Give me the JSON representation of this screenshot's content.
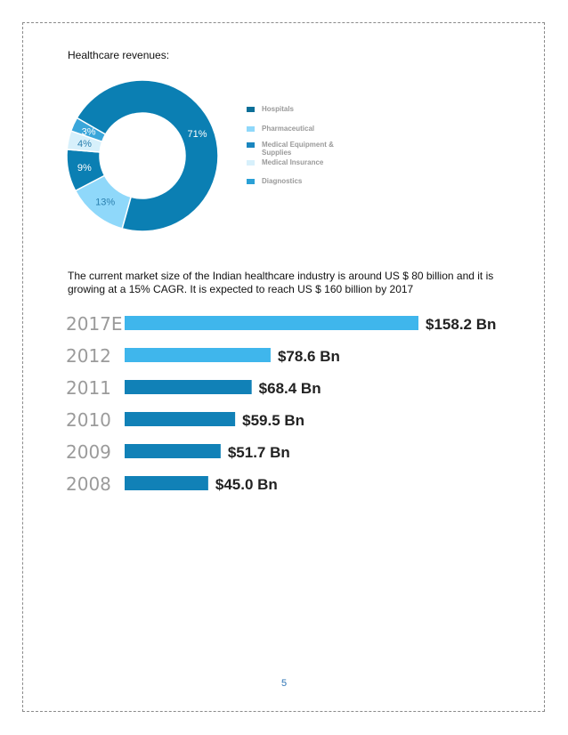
{
  "document": {
    "heading": "Healthcare revenues:",
    "paragraph": "The current market size of the Indian healthcare industry is around US $ 80 billion and it is growing at a 15% CAGR. It is expected to reach US $ 160 billion by 2017",
    "page_number": "5"
  },
  "chart_data": [
    {
      "type": "pie",
      "style": "donut",
      "legend_position": "right",
      "slices": [
        {
          "name": "Hospitals",
          "value": 71,
          "label": "71%",
          "color": "#0b7fb3"
        },
        {
          "name": "Pharmaceutical",
          "value": 13,
          "label": "13%",
          "color": "#8fd8fa"
        },
        {
          "name": "Medical Equipment & Supplies",
          "value": 9,
          "label": "9%",
          "color": "#0b7fb3"
        },
        {
          "name": "Medical Insurance",
          "value": 4,
          "label": "4%",
          "color": "#d7f0fb"
        },
        {
          "name": "Diagnostics",
          "value": 3,
          "label": "3%",
          "color": "#3aa6da"
        }
      ],
      "legend": [
        {
          "label": "Hospitals",
          "color": "#0b6f98"
        },
        {
          "label": "Pharmaceutical",
          "color": "#8fd8fa"
        },
        {
          "label": "Medical Equipment & Supplies",
          "color": "#1a86bf"
        },
        {
          "label": "Medical Insurance",
          "color": "#d7f0fb"
        },
        {
          "label": "Diagnostics",
          "color": "#2aa0d6"
        }
      ]
    },
    {
      "type": "bar",
      "orientation": "horizontal",
      "categories": [
        "2017E",
        "2012",
        "2011",
        "2010",
        "2009",
        "2008"
      ],
      "values": [
        158.2,
        78.6,
        68.4,
        59.5,
        51.7,
        45.0
      ],
      "value_labels": [
        "$158.2 Bn",
        "$78.6 Bn",
        "$68.4 Bn",
        "$59.5 Bn",
        "$51.7 Bn",
        "$45.0 Bn"
      ],
      "bar_colors": [
        "#3fb6ec",
        "#3fb6ec",
        "#1181b7",
        "#1181b7",
        "#1181b7",
        "#1181b7"
      ],
      "xlim": [
        0,
        158.2
      ]
    }
  ]
}
